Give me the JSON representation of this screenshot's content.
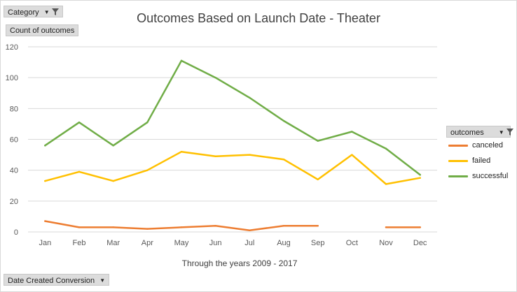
{
  "filters": {
    "category_label": "Category",
    "count_label": "Count of outcomes",
    "outcomes_label": "outcomes",
    "date_label": "Date Created Conversion"
  },
  "colors": {
    "canceled": "#ed7d31",
    "failed": "#ffc000",
    "successful": "#70ad47",
    "grid": "#d9d9d9",
    "axis_text": "#595959"
  },
  "chart_data": {
    "type": "line",
    "title": "Outcomes Based on Launch Date - Theater",
    "xlabel": "Through the  years 2009 - 2017",
    "ylabel": "",
    "ylim": [
      0,
      120
    ],
    "yticks": [
      0,
      20,
      40,
      60,
      80,
      100,
      120
    ],
    "grid": true,
    "legend_position": "right",
    "categories": [
      "Jan",
      "Feb",
      "Mar",
      "Apr",
      "May",
      "Jun",
      "Jul",
      "Aug",
      "Sep",
      "Oct",
      "Nov",
      "Dec"
    ],
    "series": [
      {
        "name": "canceled",
        "values": [
          7,
          3,
          3,
          2,
          3,
          4,
          1,
          4,
          4,
          null,
          3,
          3
        ]
      },
      {
        "name": "failed",
        "values": [
          33,
          39,
          33,
          40,
          52,
          49,
          50,
          47,
          34,
          50,
          31,
          35
        ]
      },
      {
        "name": "successful",
        "values": [
          56,
          71,
          56,
          71,
          111,
          100,
          87,
          72,
          59,
          65,
          54,
          37
        ]
      }
    ]
  }
}
